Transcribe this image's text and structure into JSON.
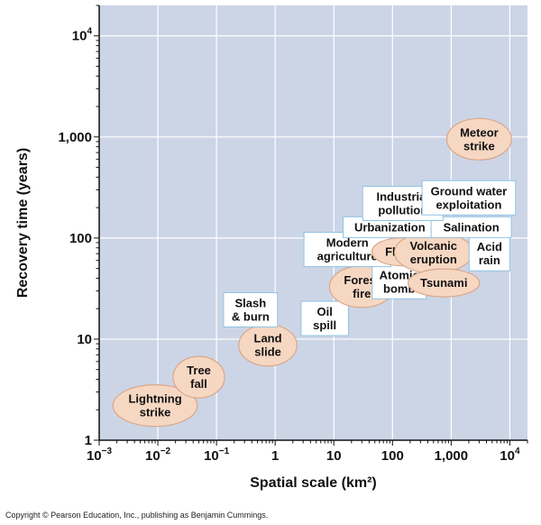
{
  "chart_data": {
    "type": "scatter",
    "xlabel": "Spatial scale (km²)",
    "ylabel": "Recovery time (years)",
    "x_scale": "log",
    "y_scale": "log",
    "xlim": [
      0.001,
      20000
    ],
    "ylim": [
      1,
      20000
    ],
    "grid": true,
    "x_ticks": [
      {
        "value": 0.001,
        "base": "10",
        "exp": "−3"
      },
      {
        "value": 0.01,
        "base": "10",
        "exp": "−2"
      },
      {
        "value": 0.1,
        "base": "10",
        "exp": "−1"
      },
      {
        "value": 1,
        "base": "1",
        "exp": ""
      },
      {
        "value": 10,
        "base": "10",
        "exp": ""
      },
      {
        "value": 100,
        "base": "100",
        "exp": ""
      },
      {
        "value": 1000,
        "base": "1,000",
        "exp": ""
      },
      {
        "value": 10000,
        "base": "10",
        "exp": "4"
      }
    ],
    "y_ticks": [
      {
        "value": 1,
        "base": "1",
        "exp": ""
      },
      {
        "value": 10,
        "base": "10",
        "exp": ""
      },
      {
        "value": 100,
        "base": "100",
        "exp": ""
      },
      {
        "value": 1000,
        "base": "1,000",
        "exp": ""
      },
      {
        "value": 10000,
        "base": "10",
        "exp": "4"
      }
    ],
    "points": [
      {
        "label": "Lightning strike",
        "lines": [
          "Lightning",
          "strike"
        ],
        "x": 0.009,
        "y": 2.2,
        "style": "natural"
      },
      {
        "label": "Tree fall",
        "lines": [
          "Tree",
          "fall"
        ],
        "x": 0.05,
        "y": 4.2,
        "style": "natural"
      },
      {
        "label": "Land slide",
        "lines": [
          "Land",
          "slide"
        ],
        "x": 0.75,
        "y": 8.7,
        "style": "natural"
      },
      {
        "label": "Slash & burn",
        "lines": [
          "Slash",
          "& burn"
        ],
        "x": 0.38,
        "y": 19.5,
        "style": "human"
      },
      {
        "label": "Oil spill",
        "lines": [
          "Oil",
          "spill"
        ],
        "x": 7,
        "y": 16,
        "style": "human"
      },
      {
        "label": "Forest fire",
        "lines": [
          "Forest",
          "fire"
        ],
        "x": 30,
        "y": 33,
        "style": "natural"
      },
      {
        "label": "Atomic bomb",
        "lines": [
          "Atomic",
          "bomb"
        ],
        "x": 130,
        "y": 37,
        "style": "human"
      },
      {
        "label": "Modern agriculture",
        "lines": [
          "Modern",
          "agriculture"
        ],
        "x": 17,
        "y": 77,
        "style": "human"
      },
      {
        "label": "Flood",
        "lines": [
          "Flood"
        ],
        "x": 140,
        "y": 73,
        "style": "natural"
      },
      {
        "label": "Volcanic eruption",
        "lines": [
          "Volcanic",
          "eruption"
        ],
        "x": 500,
        "y": 72,
        "style": "natural"
      },
      {
        "label": "Tsunami",
        "lines": [
          "Tsunami"
        ],
        "x": 750,
        "y": 36,
        "style": "natural"
      },
      {
        "label": "Acid rain",
        "lines": [
          "Acid",
          "rain"
        ],
        "x": 4500,
        "y": 70,
        "style": "human"
      },
      {
        "label": "Urbanization",
        "lines": [
          "Urbanization"
        ],
        "x": 90,
        "y": 128,
        "style": "human"
      },
      {
        "label": "Salination",
        "lines": [
          "Salination"
        ],
        "x": 2200,
        "y": 128,
        "style": "human"
      },
      {
        "label": "Industrial pollution",
        "lines": [
          "Industrial",
          "pollution"
        ],
        "x": 150,
        "y": 220,
        "style": "human"
      },
      {
        "label": "Ground water exploitation",
        "lines": [
          "Ground water",
          "exploitation"
        ],
        "x": 2000,
        "y": 250,
        "style": "human"
      },
      {
        "label": "Meteor strike",
        "lines": [
          "Meteor",
          "strike"
        ],
        "x": 3000,
        "y": 950,
        "style": "natural"
      }
    ],
    "colors": {
      "plot_background": "#ccd5e6",
      "grid": "#ffffff",
      "natural_fill": "#f6d7c2",
      "natural_stroke": "#d9a78a",
      "human_fill": "#ffffff",
      "human_stroke": "#8fc3e3"
    }
  },
  "footer": {
    "copyright": "Copyright © Pearson Education, Inc., publishing as Benjamin Cummings."
  }
}
